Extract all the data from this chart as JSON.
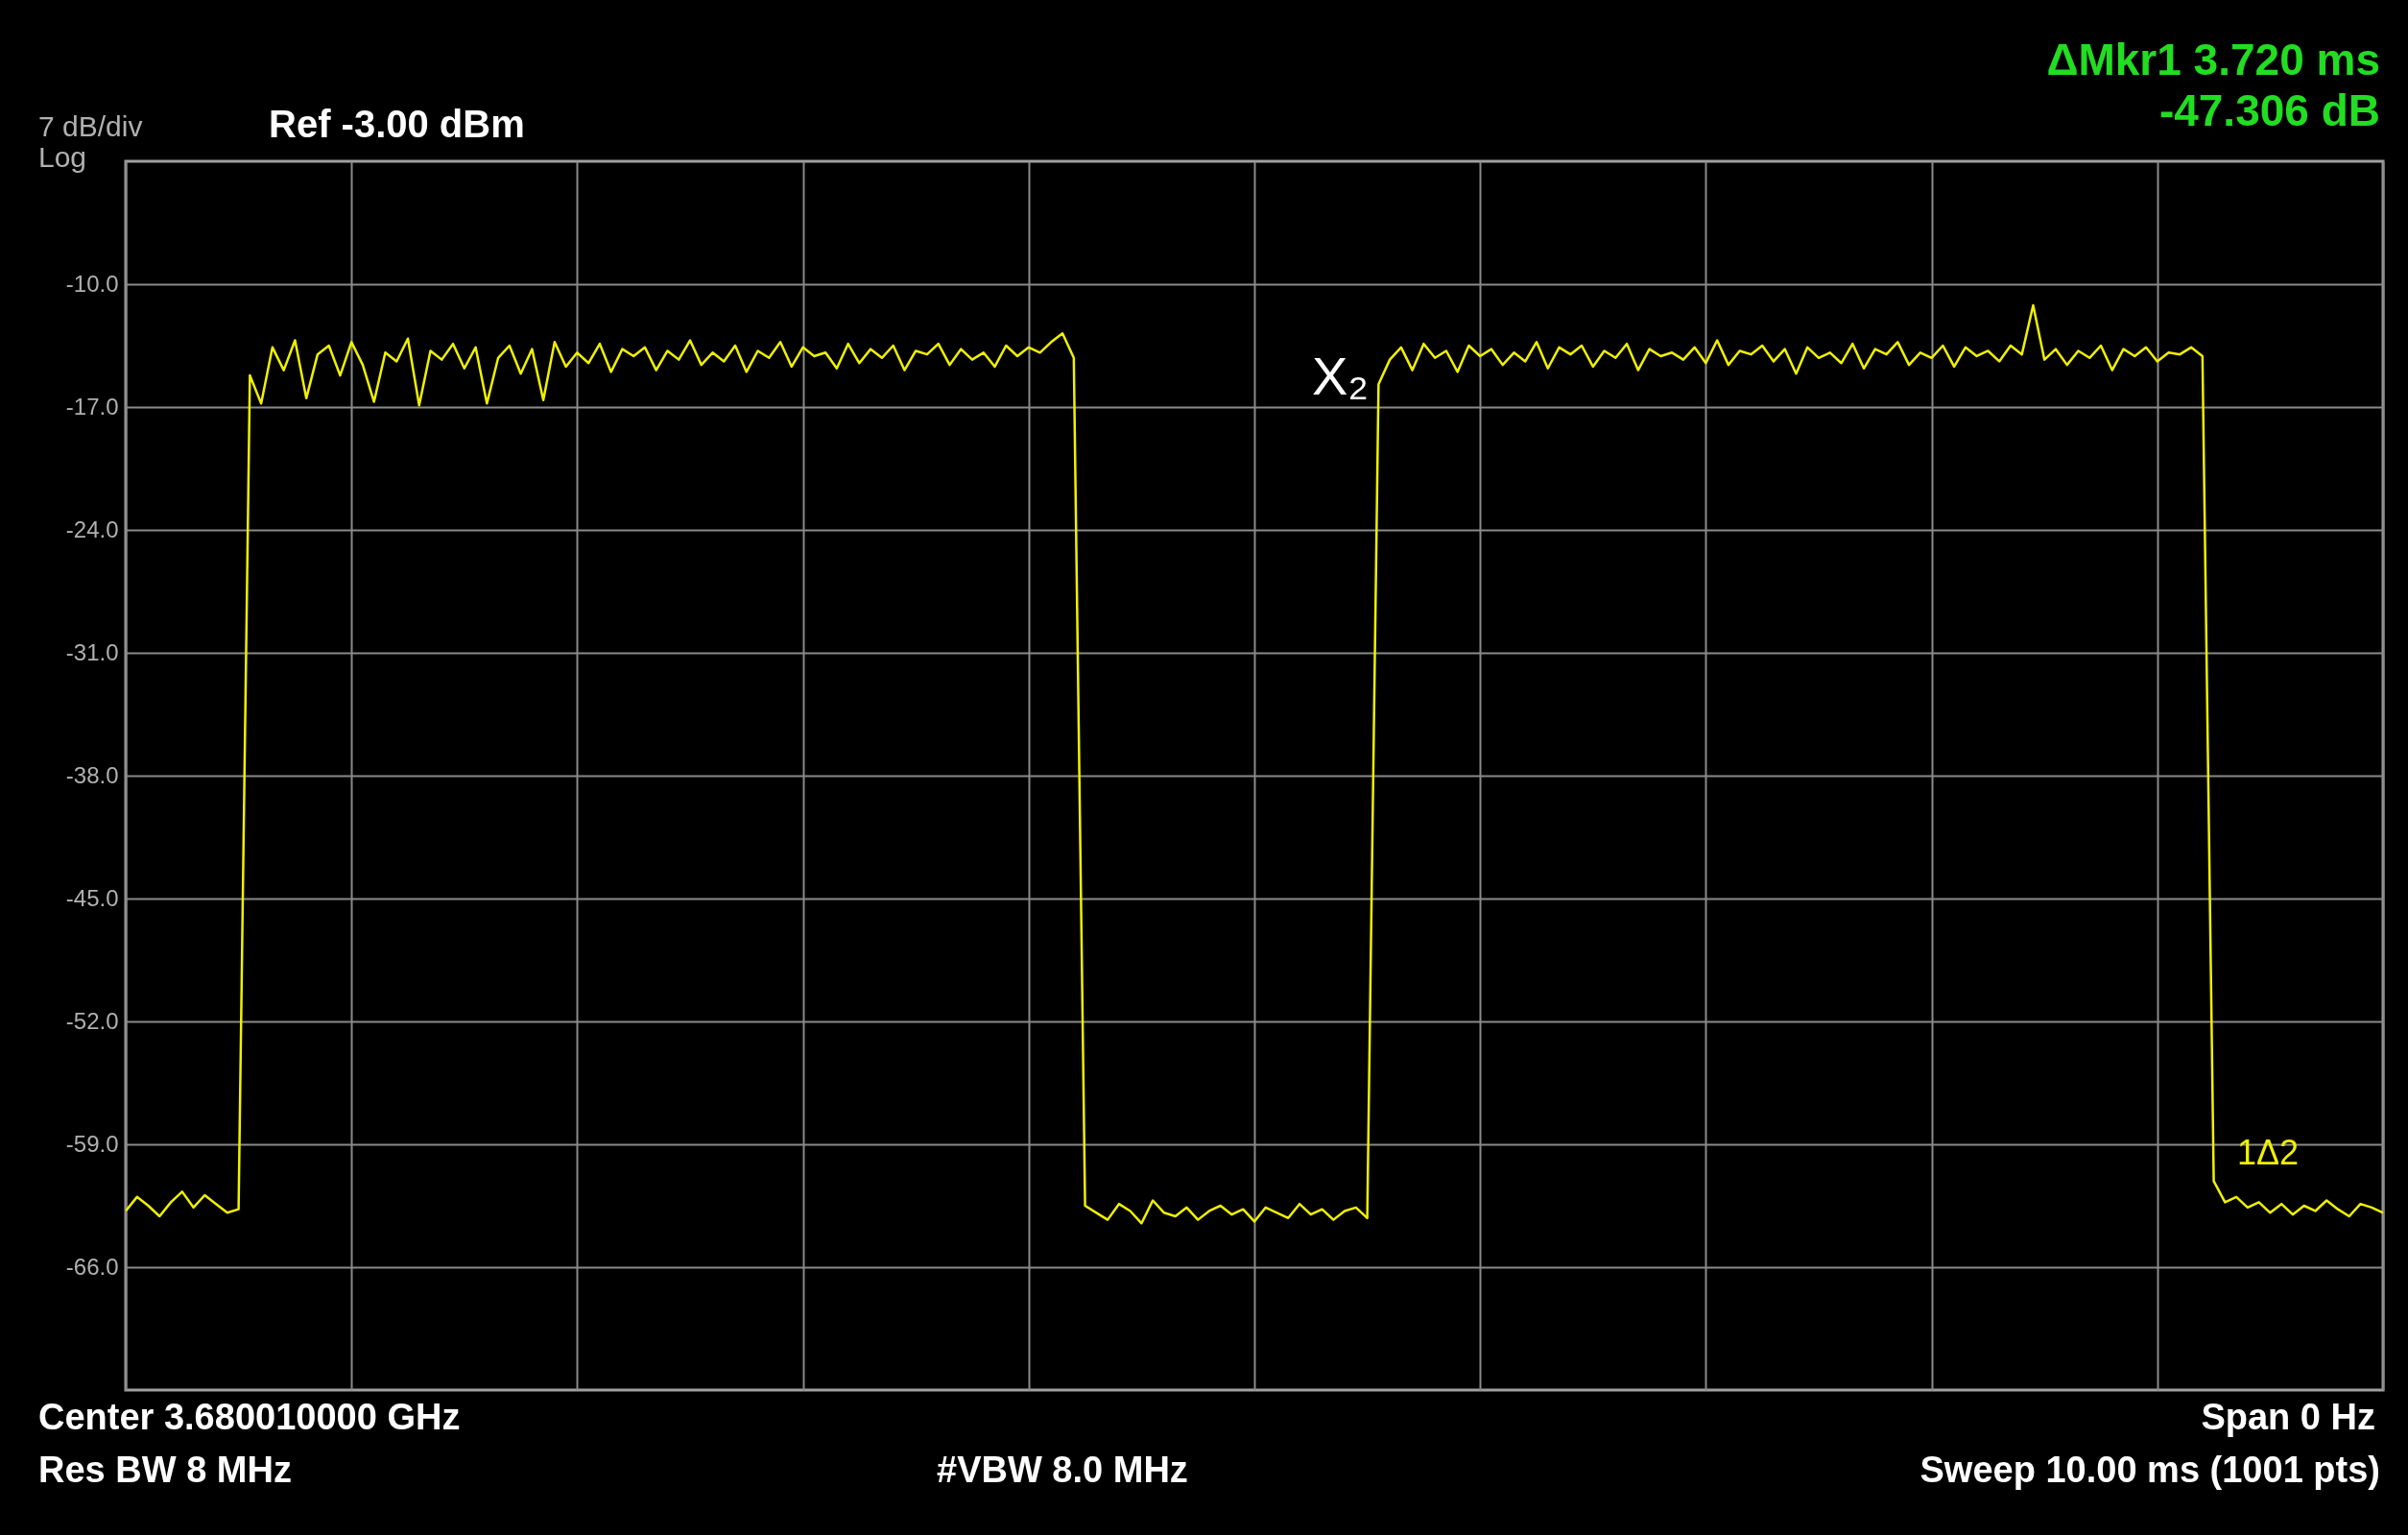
{
  "chart_data": {
    "type": "line",
    "annotations": [
      "7 dB/div",
      "Log",
      "Ref -3.00 dBm",
      "ΔMkr1 3.720 ms",
      "-47.306 dB",
      "Center 3.680010000 GHz",
      "Res BW 8 MHz",
      "#VBW 8.0 MHz",
      "Span 0 Hz",
      "Sweep  10.00 ms (1001 pts)",
      "X₂",
      "1Δ2"
    ],
    "categories": [
      null,
      null,
      null,
      null,
      null,
      null,
      null,
      null,
      null,
      null,
      null,
      null,
      null,
      null,
      null,
      null,
      null,
      null,
      null,
      null,
      null,
      null,
      null,
      null,
      null,
      null,
      null,
      null,
      null,
      null,
      null,
      null,
      null,
      null,
      null,
      null,
      null,
      null,
      null,
      null,
      null,
      null,
      null,
      null,
      null,
      null,
      null,
      null,
      null,
      null,
      null,
      null,
      null,
      null,
      null,
      null,
      null,
      null,
      null,
      null,
      null,
      null,
      null,
      null,
      null,
      null,
      null,
      null,
      null,
      null,
      null,
      null,
      null,
      null,
      null,
      null,
      null,
      null,
      null,
      null,
      null,
      null,
      null,
      null,
      null,
      null,
      null,
      null,
      null,
      null,
      null,
      null,
      null,
      null,
      null,
      null,
      null,
      null,
      null,
      null,
      null,
      null,
      null,
      null,
      null,
      null,
      null,
      null,
      null,
      null,
      null,
      null,
      null,
      null,
      null,
      null,
      null,
      null,
      null,
      null,
      null,
      null,
      null,
      null,
      null,
      null,
      null,
      null,
      null,
      null,
      null,
      null,
      null,
      null,
      null,
      null,
      null,
      null,
      null,
      null,
      null,
      null,
      null,
      null,
      null,
      null,
      null,
      null,
      null,
      null,
      null,
      null,
      null,
      null,
      null,
      null,
      null,
      null,
      null,
      null,
      null,
      null,
      null,
      null,
      null,
      null,
      null,
      null,
      null,
      null,
      null,
      null,
      null,
      null,
      null,
      null,
      null,
      null,
      null,
      null,
      null,
      null,
      null,
      null,
      null,
      null,
      null,
      null,
      null,
      null,
      null,
      null,
      null,
      null,
      null,
      null,
      null,
      null,
      null,
      null,
      null
    ],
    "series": [
      {
        "color": "#f0f000",
        "marker": "none",
        "line_style": "solid",
        "values": [
          -62.8,
          -62.0,
          -62.5,
          -63.1,
          -62.3,
          -61.7,
          -62.6,
          -61.9,
          -62.4,
          -62.9,
          -62.7,
          -15.2,
          -16.8,
          -13.6,
          -14.9,
          -13.2,
          -16.5,
          -14.0,
          -13.5,
          -15.2,
          -13.3,
          -14.6,
          -16.7,
          -13.9,
          -14.4,
          -13.1,
          -16.9,
          -13.8,
          -14.3,
          -13.4,
          -14.8,
          -13.6,
          -16.8,
          -14.2,
          -13.5,
          -15.1,
          -13.7,
          -16.6,
          -13.3,
          -14.7,
          -13.9,
          -14.5,
          -13.4,
          -15.0,
          -13.7,
          -14.1,
          -13.6,
          -14.9,
          -13.8,
          -14.3,
          -13.2,
          -14.6,
          -13.9,
          -14.4,
          -13.5,
          -15.0,
          -13.8,
          -14.2,
          -13.3,
          -14.7,
          -13.6,
          -14.1,
          -13.9,
          -14.8,
          -13.4,
          -14.5,
          -13.7,
          -14.2,
          -13.5,
          -14.9,
          -13.8,
          -14.0,
          -13.4,
          -14.6,
          -13.7,
          -14.3,
          -13.9,
          -14.7,
          -13.5,
          -14.1,
          -13.6,
          -13.9,
          -13.3,
          -12.8,
          -14.2,
          -62.5,
          -62.9,
          -63.3,
          -62.4,
          -62.8,
          -63.5,
          -62.2,
          -62.9,
          -63.1,
          -62.6,
          -63.3,
          -62.8,
          -62.5,
          -63.0,
          -62.7,
          -63.4,
          -62.6,
          -62.9,
          -63.2,
          -62.4,
          -63.0,
          -62.7,
          -63.3,
          -62.8,
          -62.6,
          -63.2,
          -15.7,
          -14.3,
          -13.6,
          -14.9,
          -13.4,
          -14.2,
          -13.8,
          -15.0,
          -13.5,
          -14.1,
          -13.7,
          -14.6,
          -13.9,
          -14.4,
          -13.3,
          -14.8,
          -13.6,
          -14.0,
          -13.5,
          -14.7,
          -13.8,
          -14.2,
          -13.4,
          -14.9,
          -13.7,
          -14.1,
          -13.9,
          -14.3,
          -13.6,
          -14.5,
          -13.2,
          -14.6,
          -13.8,
          -14.0,
          -13.5,
          -14.4,
          -13.7,
          -15.1,
          -13.6,
          -14.2,
          -13.9,
          -14.5,
          -13.4,
          -14.8,
          -13.7,
          -14.0,
          -13.3,
          -14.6,
          -13.9,
          -14.2,
          -13.5,
          -14.7,
          -13.6,
          -14.1,
          -13.8,
          -14.4,
          -13.5,
          -14.0,
          -11.2,
          -14.3,
          -13.7,
          -14.6,
          -13.8,
          -14.2,
          -13.5,
          -14.9,
          -13.7,
          -14.1,
          -13.6,
          -14.4,
          -13.9,
          -14.0,
          -13.6,
          -14.1,
          -61.1,
          -62.3,
          -62.0,
          -62.6,
          -62.3,
          -62.9,
          -62.4,
          -63.0,
          -62.5,
          -62.8,
          -62.2,
          -62.7,
          -63.1,
          -62.4,
          -62.6,
          -62.9
        ]
      }
    ],
    "ylim": [
      -73,
      -3
    ],
    "yticks": [
      {
        "value": -10,
        "label": "-10.0"
      },
      {
        "value": -17,
        "label": "-17.0"
      },
      {
        "value": -24,
        "label": "-24.0"
      },
      {
        "value": -31,
        "label": "-31.0"
      },
      {
        "value": -38,
        "label": "-38.0"
      },
      {
        "value": -45,
        "label": "-45.0"
      },
      {
        "value": -52,
        "label": "-52.0"
      },
      {
        "value": -59,
        "label": "-59.0"
      },
      {
        "value": -66,
        "label": "-66.0"
      }
    ],
    "tick_labels": "y",
    "grid": true
  }
}
